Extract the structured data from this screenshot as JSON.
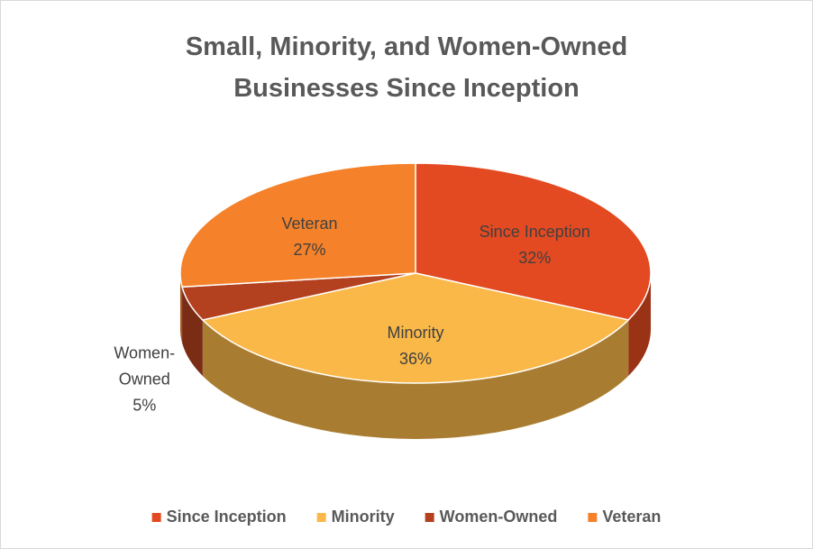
{
  "chart_data": {
    "type": "pie",
    "title": "Small, Minority, and Women-Owned Businesses Since Inception",
    "categories": [
      "Since Inception",
      "Minority",
      "Women-Owned",
      "Veteran"
    ],
    "values": [
      32,
      36,
      5,
      27
    ],
    "value_labels": [
      "32%",
      "36%",
      "5%",
      "27%"
    ],
    "colors": [
      "#e34a21",
      "#f9b848",
      "#b3401f",
      "#f5822a"
    ],
    "legend": "bottom"
  }
}
